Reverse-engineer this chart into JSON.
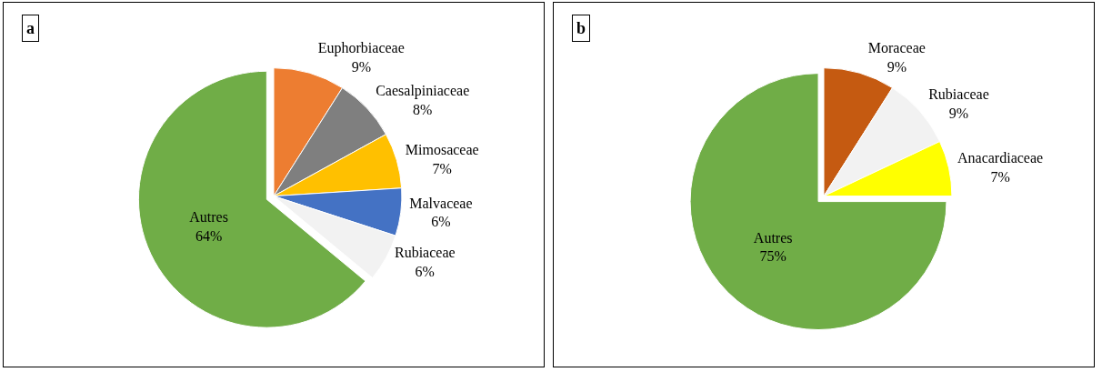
{
  "chart_data": [
    {
      "type": "pie",
      "title": "a",
      "categories": [
        "Euphorbiaceae",
        "Caesalpiniaceae",
        "Mimosaceae",
        "Malvaceae",
        "Rubiaceae",
        "Autres"
      ],
      "values": [
        9,
        8,
        7,
        6,
        6,
        64
      ],
      "value_labels": [
        "9%",
        "8%",
        "7%",
        "6%",
        "6%",
        "64%"
      ],
      "colors": [
        "#ed7d31",
        "#7f7f7f",
        "#ffc000",
        "#4472c4",
        "#f2f2f2",
        "#70ad47"
      ],
      "legend": false
    },
    {
      "type": "pie",
      "title": "b",
      "categories": [
        "Moraceae",
        "Rubiaceae",
        "Anacardiaceae",
        "Autres"
      ],
      "values": [
        9,
        9,
        7,
        75
      ],
      "value_labels": [
        "9%",
        "9%",
        "7%",
        "75%"
      ],
      "colors": [
        "#c55a11",
        "#f2f2f2",
        "#ffff00",
        "#70ad47"
      ],
      "legend": false
    }
  ]
}
